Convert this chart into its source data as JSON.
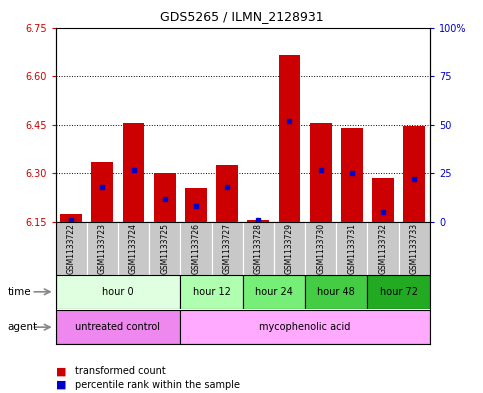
{
  "title": "GDS5265 / ILMN_2128931",
  "samples": [
    "GSM1133722",
    "GSM1133723",
    "GSM1133724",
    "GSM1133725",
    "GSM1133726",
    "GSM1133727",
    "GSM1133728",
    "GSM1133729",
    "GSM1133730",
    "GSM1133731",
    "GSM1133732",
    "GSM1133733"
  ],
  "red_values": [
    6.175,
    6.335,
    6.455,
    6.3,
    6.255,
    6.325,
    6.155,
    6.665,
    6.455,
    6.44,
    6.285,
    6.445
  ],
  "blue_values_pct": [
    1,
    18,
    27,
    12,
    8,
    18,
    1,
    52,
    27,
    25,
    5,
    22
  ],
  "ymin": 6.15,
  "ymax": 6.75,
  "yright_min": 0,
  "yright_max": 100,
  "yticks_left": [
    6.15,
    6.3,
    6.45,
    6.6,
    6.75
  ],
  "yticks_right": [
    0,
    25,
    50,
    75,
    100
  ],
  "time_groups": [
    {
      "label": "hour 0",
      "start": 0,
      "end": 4,
      "color": "#e0ffe0"
    },
    {
      "label": "hour 12",
      "start": 4,
      "end": 6,
      "color": "#b0ffb0"
    },
    {
      "label": "hour 24",
      "start": 6,
      "end": 8,
      "color": "#77ee77"
    },
    {
      "label": "hour 48",
      "start": 8,
      "end": 10,
      "color": "#44cc44"
    },
    {
      "label": "hour 72",
      "start": 10,
      "end": 12,
      "color": "#22aa22"
    }
  ],
  "agent_groups": [
    {
      "label": "untreated control",
      "start": 0,
      "end": 4,
      "color": "#ee88ee"
    },
    {
      "label": "mycophenolic acid",
      "start": 4,
      "end": 12,
      "color": "#ffaaff"
    }
  ],
  "bar_color": "#cc0000",
  "blue_marker_color": "#0000cc",
  "base_value": 6.15,
  "bar_width": 0.7,
  "bg_color": "#ffffff",
  "sample_bg_color": "#c8c8c8",
  "left_axis_color": "#cc0000",
  "right_axis_color": "#0000cc",
  "legend_red_label": "transformed count",
  "legend_blue_label": "percentile rank within the sample",
  "time_label": "time",
  "agent_label": "agent"
}
